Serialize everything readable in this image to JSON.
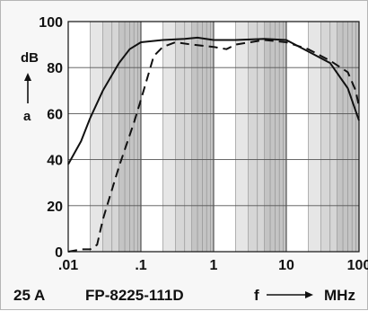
{
  "chart_data": {
    "type": "line",
    "xscale": "log",
    "xlim": [
      0.01,
      100
    ],
    "ylim": [
      0,
      100
    ],
    "x_ticks": [
      ".01",
      ".1",
      "1",
      "10",
      "100"
    ],
    "y_ticks": [
      "0",
      "20",
      "40",
      "60",
      "80",
      "100"
    ],
    "ylabel_unit": "dB",
    "ylabel_symbol": "a",
    "xlabel_symbol": "f",
    "xlabel_unit": "MHz",
    "grid": true,
    "series": [
      {
        "style": "solid",
        "points": [
          [
            0.01,
            38
          ],
          [
            0.015,
            48
          ],
          [
            0.02,
            58
          ],
          [
            0.03,
            70
          ],
          [
            0.05,
            82
          ],
          [
            0.07,
            88
          ],
          [
            0.1,
            91
          ],
          [
            0.2,
            92
          ],
          [
            0.4,
            92.5
          ],
          [
            0.6,
            93
          ],
          [
            1,
            92
          ],
          [
            2,
            92
          ],
          [
            5,
            92.5
          ],
          [
            10,
            92
          ],
          [
            20,
            87
          ],
          [
            40,
            82
          ],
          [
            70,
            71
          ],
          [
            100,
            57
          ]
        ]
      },
      {
        "style": "dashed",
        "points": [
          [
            0.01,
            0
          ],
          [
            0.015,
            1
          ],
          [
            0.02,
            1
          ],
          [
            0.025,
            3
          ],
          [
            0.03,
            14
          ],
          [
            0.05,
            37
          ],
          [
            0.08,
            56
          ],
          [
            0.1,
            66
          ],
          [
            0.15,
            85
          ],
          [
            0.2,
            89
          ],
          [
            0.3,
            91
          ],
          [
            0.5,
            90
          ],
          [
            1,
            89
          ],
          [
            1.5,
            88
          ],
          [
            2,
            90
          ],
          [
            5,
            92
          ],
          [
            10,
            91
          ],
          [
            20,
            88
          ],
          [
            40,
            83
          ],
          [
            70,
            78
          ],
          [
            90,
            70
          ],
          [
            100,
            63
          ]
        ]
      }
    ]
  },
  "footer": {
    "current": "25 A",
    "part_number": "FP-8225-111D"
  }
}
